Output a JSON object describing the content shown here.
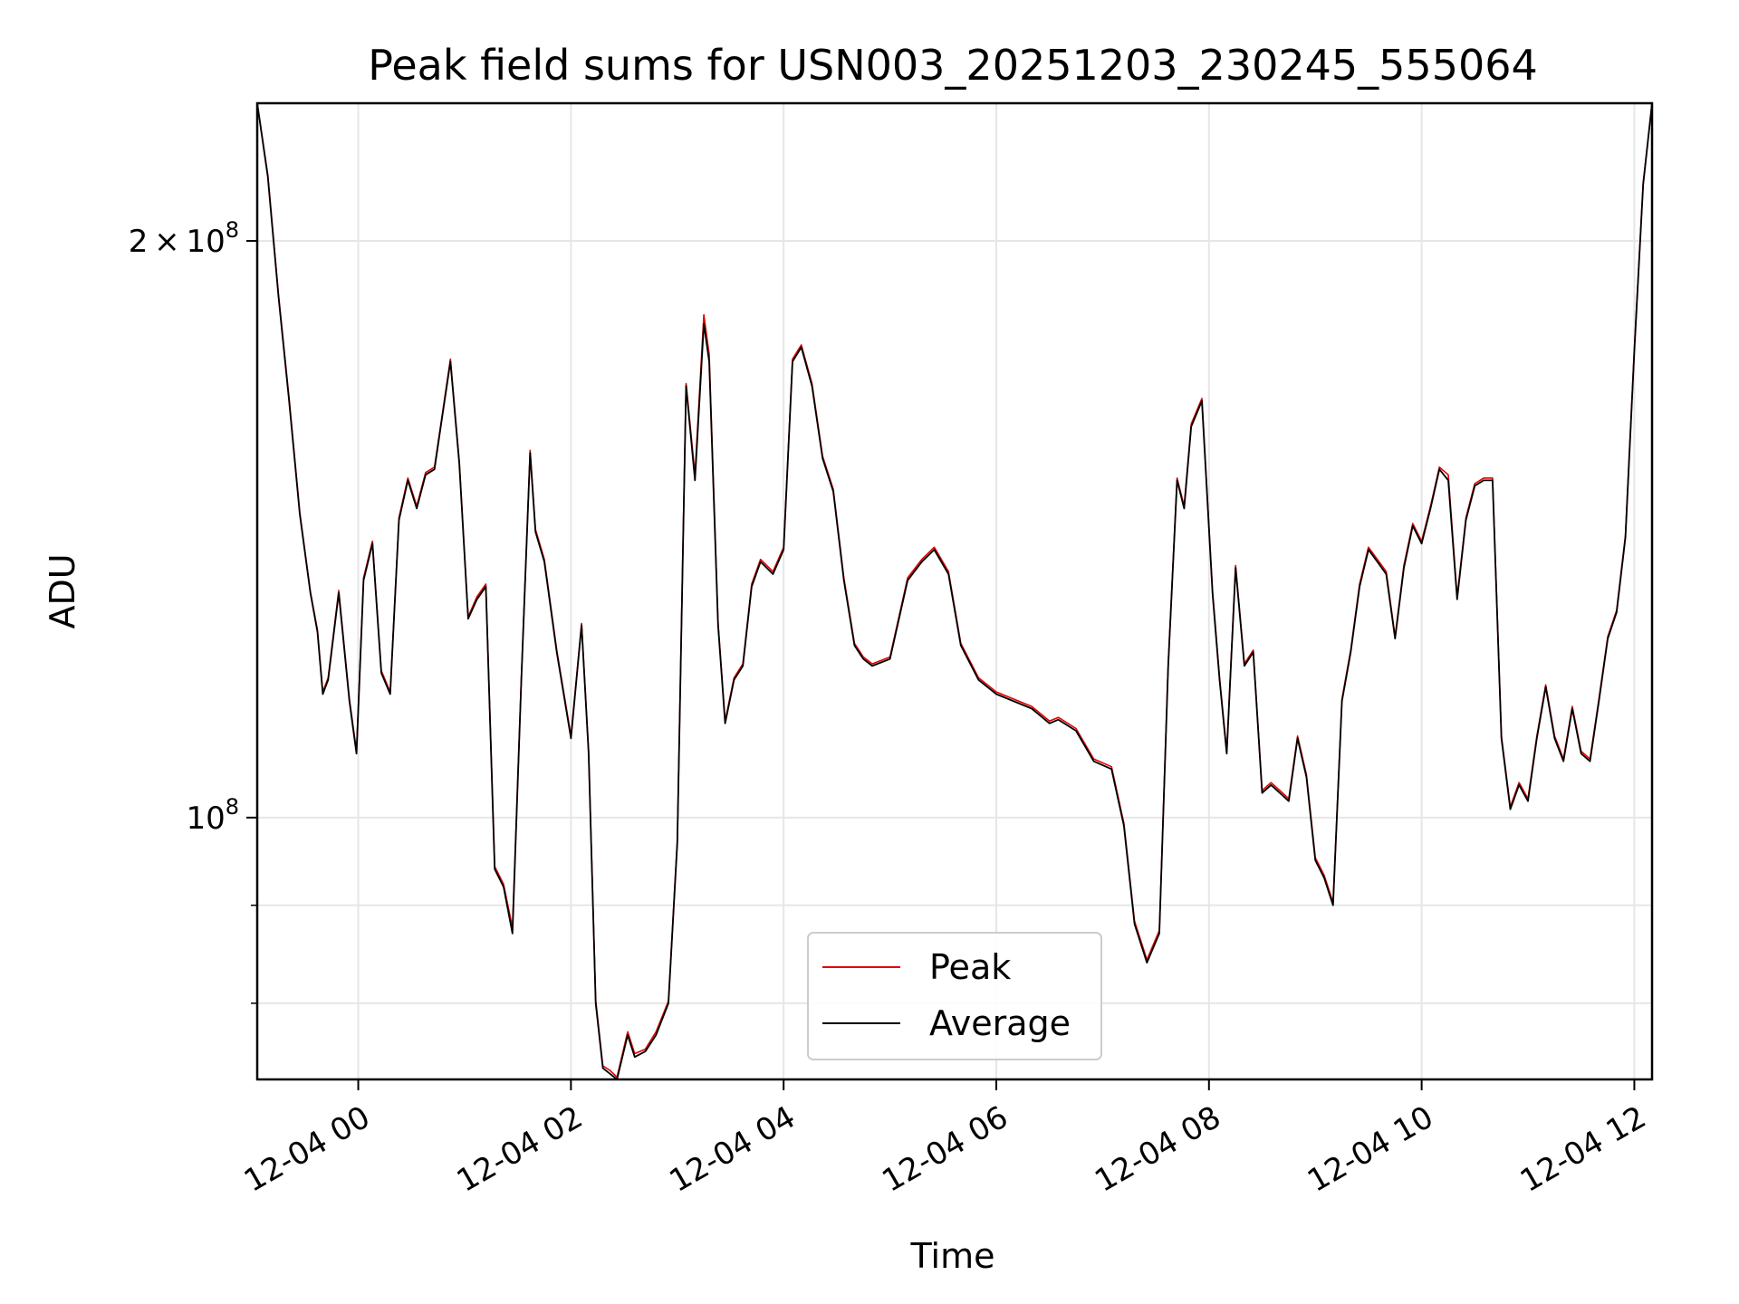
{
  "chart_data": {
    "type": "line",
    "title": "Peak field sums for USN003_20251203_230245_555064",
    "xlabel": "Time",
    "ylabel": "ADU",
    "yscale": "log",
    "ylim": [
      73000000,
      236000000
    ],
    "xlim": [
      "2025-12-03 23:03",
      "2025-12-04 12:10"
    ],
    "grid": true,
    "legend_position": "lower center",
    "x_ticks": [
      {
        "value": "2025-12-04 00:00",
        "label": "12-04 00"
      },
      {
        "value": "2025-12-04 02:00",
        "label": "12-04 02"
      },
      {
        "value": "2025-12-04 04:00",
        "label": "12-04 04"
      },
      {
        "value": "2025-12-04 06:00",
        "label": "12-04 06"
      },
      {
        "value": "2025-12-04 08:00",
        "label": "12-04 08"
      },
      {
        "value": "2025-12-04 10:00",
        "label": "12-04 10"
      },
      {
        "value": "2025-12-04 12:00",
        "label": "12-04 12"
      }
    ],
    "y_major_ticks": [
      {
        "value": 100000000,
        "base": "10",
        "exp": "8",
        "coef": ""
      },
      {
        "value": 200000000,
        "base": "10",
        "exp": "8",
        "coef": "2"
      }
    ],
    "y_minor_ticks": [
      80000000,
      90000000
    ],
    "x": [
      "2025-12-03 23:03",
      "2025-12-03 23:09",
      "2025-12-03 23:15",
      "2025-12-03 23:21",
      "2025-12-03 23:27",
      "2025-12-03 23:33",
      "2025-12-03 23:37",
      "2025-12-03 23:40",
      "2025-12-03 23:43",
      "2025-12-03 23:49",
      "2025-12-03 23:55",
      "2025-12-03 23:59",
      "2025-12-04 00:03",
      "2025-12-04 00:08",
      "2025-12-04 00:13",
      "2025-12-04 00:18",
      "2025-12-04 00:23",
      "2025-12-04 00:28",
      "2025-12-04 00:33",
      "2025-12-04 00:38",
      "2025-12-04 00:43",
      "2025-12-04 00:47",
      "2025-12-04 00:52",
      "2025-12-04 00:57",
      "2025-12-04 01:02",
      "2025-12-04 01:07",
      "2025-12-04 01:12",
      "2025-12-04 01:17",
      "2025-12-04 01:22",
      "2025-12-04 01:27",
      "2025-12-04 01:32",
      "2025-12-04 01:37",
      "2025-12-04 01:40",
      "2025-12-04 01:45",
      "2025-12-04 01:52",
      "2025-12-04 02:00",
      "2025-12-04 02:06",
      "2025-12-04 02:10",
      "2025-12-04 02:14",
      "2025-12-04 02:18",
      "2025-12-04 02:22",
      "2025-12-04 02:26",
      "2025-12-04 02:32",
      "2025-12-04 02:36",
      "2025-12-04 02:42",
      "2025-12-04 02:48",
      "2025-12-04 02:55",
      "2025-12-04 03:00",
      "2025-12-04 03:05",
      "2025-12-04 03:10",
      "2025-12-04 03:15",
      "2025-12-04 03:18",
      "2025-12-04 03:23",
      "2025-12-04 03:27",
      "2025-12-04 03:32",
      "2025-12-04 03:37",
      "2025-12-04 03:42",
      "2025-12-04 03:47",
      "2025-12-04 03:54",
      "2025-12-04 04:00",
      "2025-12-04 04:05",
      "2025-12-04 04:10",
      "2025-12-04 04:16",
      "2025-12-04 04:22",
      "2025-12-04 04:28",
      "2025-12-04 04:34",
      "2025-12-04 04:40",
      "2025-12-04 04:45",
      "2025-12-04 04:50",
      "2025-12-04 05:00",
      "2025-12-04 05:10",
      "2025-12-04 05:18",
      "2025-12-04 05:25",
      "2025-12-04 05:33",
      "2025-12-04 05:40",
      "2025-12-04 05:50",
      "2025-12-04 06:00",
      "2025-12-04 06:10",
      "2025-12-04 06:20",
      "2025-12-04 06:30",
      "2025-12-04 06:35",
      "2025-12-04 06:45",
      "2025-12-04 06:55",
      "2025-12-04 07:05",
      "2025-12-04 07:12",
      "2025-12-04 07:18",
      "2025-12-04 07:25",
      "2025-12-04 07:32",
      "2025-12-04 07:37",
      "2025-12-04 07:42",
      "2025-12-04 07:46",
      "2025-12-04 07:50",
      "2025-12-04 07:56",
      "2025-12-04 08:02",
      "2025-12-04 08:06",
      "2025-12-04 08:10",
      "2025-12-04 08:15",
      "2025-12-04 08:20",
      "2025-12-04 08:25",
      "2025-12-04 08:30",
      "2025-12-04 08:35",
      "2025-12-04 08:40",
      "2025-12-04 08:45",
      "2025-12-04 08:50",
      "2025-12-04 08:55",
      "2025-12-04 09:00",
      "2025-12-04 09:05",
      "2025-12-04 09:10",
      "2025-12-04 09:15",
      "2025-12-04 09:20",
      "2025-12-04 09:25",
      "2025-12-04 09:30",
      "2025-12-04 09:35",
      "2025-12-04 09:40",
      "2025-12-04 09:45",
      "2025-12-04 09:50",
      "2025-12-04 09:55",
      "2025-12-04 10:00",
      "2025-12-04 10:05",
      "2025-12-04 10:10",
      "2025-12-04 10:15",
      "2025-12-04 10:20",
      "2025-12-04 10:25",
      "2025-12-04 10:30",
      "2025-12-04 10:35",
      "2025-12-04 10:40",
      "2025-12-04 10:45",
      "2025-12-04 10:50",
      "2025-12-04 10:55",
      "2025-12-04 11:00",
      "2025-12-04 11:05",
      "2025-12-04 11:10",
      "2025-12-04 11:15",
      "2025-12-04 11:20",
      "2025-12-04 11:25",
      "2025-12-04 11:30",
      "2025-12-04 11:35",
      "2025-12-04 11:40",
      "2025-12-04 11:45",
      "2025-12-04 11:50",
      "2025-12-04 11:55",
      "2025-12-04 12:00",
      "2025-12-04 12:05",
      "2025-12-04 12:10"
    ],
    "series": [
      {
        "name": "Average",
        "color": "#000000",
        "values": [
          236000000,
          216000000,
          187000000,
          165000000,
          144000000,
          131000000,
          125000000,
          116000000,
          118000000,
          131000000,
          115000000,
          108000000,
          133000000,
          139000000,
          119000000,
          116000000,
          143000000,
          150000000,
          145000000,
          151000000,
          152000000,
          161000000,
          173000000,
          153000000,
          127000000,
          130000000,
          132000000,
          94000000,
          92000000,
          87000000,
          118000000,
          155000000,
          141000000,
          136000000,
          122000000,
          110000000,
          126000000,
          108000000,
          80000000,
          74000000,
          73500000,
          73000000,
          77000000,
          75000000,
          75500000,
          77000000,
          80000000,
          97000000,
          168000000,
          150000000,
          181000000,
          173000000,
          126000000,
          112000000,
          118000000,
          120000000,
          132000000,
          136000000,
          134000000,
          138000000,
          173000000,
          176000000,
          168000000,
          154000000,
          148000000,
          133000000,
          123000000,
          121000000,
          120000000,
          121000000,
          133000000,
          136000000,
          138000000,
          134000000,
          123000000,
          118000000,
          116000000,
          115000000,
          114000000,
          112000000,
          112500000,
          111000000,
          107000000,
          106000000,
          99000000,
          88000000,
          84000000,
          87000000,
          120000000,
          150000000,
          145000000,
          160000000,
          165000000,
          131000000,
          118000000,
          108000000,
          135000000,
          120000000,
          122000000,
          103000000,
          104000000,
          103000000,
          102000000,
          110000000,
          105000000,
          95000000,
          93000000,
          90000000,
          115000000,
          122000000,
          132000000,
          138000000,
          136000000,
          134000000,
          124000000,
          135000000,
          142000000,
          139000000,
          145000000,
          152000000,
          150000000,
          130000000,
          143000000,
          149000000,
          150000000,
          150000000,
          110000000,
          101000000,
          104000000,
          102000000,
          110000000,
          117000000,
          110000000,
          107000000,
          114000000,
          108000000,
          107000000,
          115000000,
          124000000,
          128000000,
          140000000,
          175000000,
          214000000,
          236000000
        ]
      },
      {
        "name": "Peak",
        "color": "#e00000",
        "values": [
          236000000,
          216500000,
          187500000,
          165500000,
          144300000,
          131200000,
          125300000,
          116300000,
          118300000,
          131400000,
          115300000,
          108300000,
          133400000,
          139400000,
          119300000,
          116300000,
          143400000,
          150400000,
          145400000,
          151400000,
          152400000,
          161400000,
          173500000,
          153400000,
          127300000,
          130400000,
          132400000,
          94300000,
          92300000,
          87600000,
          118300000,
          155500000,
          141400000,
          136400000,
          122300000,
          110300000,
          126300000,
          108300000,
          80300000,
          74200000,
          73800000,
          73200000,
          77300000,
          75300000,
          75700000,
          77300000,
          80200000,
          97300000,
          168500000,
          151000000,
          183000000,
          174500000,
          126400000,
          112300000,
          118300000,
          120300000,
          132400000,
          136400000,
          134400000,
          138400000,
          173500000,
          176500000,
          168500000,
          154400000,
          148400000,
          133400000,
          123300000,
          121300000,
          120300000,
          121300000,
          133400000,
          136400000,
          138400000,
          134400000,
          123300000,
          118300000,
          116300000,
          115300000,
          114300000,
          112300000,
          112800000,
          111300000,
          107300000,
          106300000,
          99300000,
          88300000,
          84300000,
          87300000,
          120300000,
          150400000,
          145400000,
          160500000,
          165500000,
          131400000,
          118300000,
          108300000,
          135400000,
          120300000,
          122300000,
          103300000,
          104300000,
          103300000,
          102300000,
          110300000,
          105300000,
          95300000,
          93300000,
          90300000,
          115300000,
          122300000,
          132400000,
          138400000,
          136400000,
          134400000,
          124300000,
          135400000,
          142400000,
          139400000,
          145400000,
          152400000,
          151000000,
          130400000,
          143400000,
          149400000,
          150400000,
          150400000,
          110300000,
          101300000,
          104300000,
          102300000,
          110300000,
          117300000,
          110300000,
          107300000,
          114300000,
          108300000,
          107300000,
          115300000,
          124300000,
          128300000,
          140400000,
          175500000,
          214500000,
          236000000
        ]
      }
    ]
  }
}
